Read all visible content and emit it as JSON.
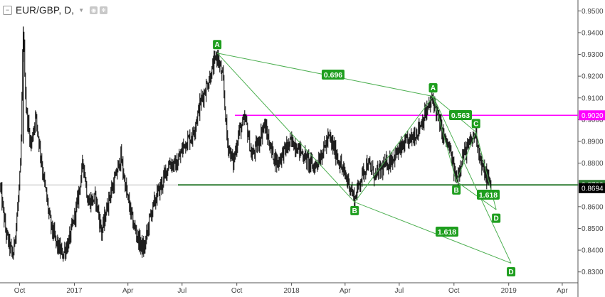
{
  "header": {
    "title": "EUR/GBP, D,",
    "collapse_icon": "minus-icon",
    "caret_icon": "caret-down-icon",
    "buttons": [
      "eye-icon",
      "gear-icon"
    ]
  },
  "colors": {
    "pattern": "#4caf50",
    "label_bg": "#1e9e1e",
    "resistance": "#ff00ff",
    "support": "#2e7d32",
    "candle": "#000000",
    "price_badge": "#000000",
    "gray_line": "#bdbdbd"
  },
  "price_axis": {
    "ticks": [
      "0.9500",
      "0.9400",
      "0.9300",
      "0.9200",
      "0.9100",
      "0.9000",
      "0.8900",
      "0.8800",
      "0.8700",
      "0.8600",
      "0.8500",
      "0.8400",
      "0.8300"
    ],
    "min": 0.825,
    "max": 0.955
  },
  "time_axis": {
    "ticks": [
      "Oct",
      "2017",
      "Apr",
      "Jul",
      "Oct",
      "2018",
      "Apr",
      "Jul",
      "Oct",
      "2019",
      "Apr"
    ]
  },
  "badges": {
    "resistance": "0.9020",
    "support": "0.8700",
    "last_price": "0.8694"
  },
  "chart_data": {
    "type": "candlestick",
    "symbol": "EUR/GBP",
    "interval": "D",
    "horizontal_lines": [
      {
        "price": 0.902,
        "style": "resistance"
      },
      {
        "price": 0.87,
        "style": "support"
      },
      {
        "price": 0.87,
        "style": "gray"
      }
    ],
    "patterns": [
      {
        "name": "pattern-1",
        "points": [
          {
            "label": "A",
            "date": "2017-08-29",
            "price": 0.9306
          },
          {
            "label": "B",
            "date": "2018-04-17",
            "price": 0.8621
          },
          {
            "label": "C",
            "date": "2018-08-27",
            "price": 0.9107
          },
          {
            "label": "D",
            "date": "2019-01-05",
            "price": 0.834
          }
        ],
        "ratios": [
          {
            "value": "0.696",
            "between": [
              "A",
              "C"
            ]
          },
          {
            "value": "1.618",
            "between": [
              "B",
              "D"
            ]
          }
        ]
      },
      {
        "name": "pattern-2",
        "points": [
          {
            "label": "A",
            "date": "2018-08-27",
            "price": 0.9107
          },
          {
            "label": "B",
            "date": "2018-10-05",
            "price": 0.8716
          },
          {
            "label": "C",
            "date": "2018-11-07",
            "price": 0.8943
          },
          {
            "label": "D",
            "date": "2018-12-11",
            "price": 0.8586
          }
        ],
        "ratios": [
          {
            "value": "0.563",
            "between": [
              "A",
              "C"
            ]
          },
          {
            "value": "1.618",
            "between": [
              "B",
              "D"
            ]
          }
        ]
      }
    ],
    "price_path": [
      [
        "2016-08-29",
        0.87
      ],
      [
        "2016-09-08",
        0.848
      ],
      [
        "2016-09-20",
        0.837
      ],
      [
        "2016-09-28",
        0.86
      ],
      [
        "2016-10-03",
        0.88
      ],
      [
        "2016-10-07",
        0.942
      ],
      [
        "2016-10-12",
        0.905
      ],
      [
        "2016-10-20",
        0.888
      ],
      [
        "2016-10-28",
        0.902
      ],
      [
        "2016-11-10",
        0.874
      ],
      [
        "2016-11-22",
        0.852
      ],
      [
        "2016-12-02",
        0.843
      ],
      [
        "2016-12-12",
        0.838
      ],
      [
        "2016-12-23",
        0.844
      ],
      [
        "2017-01-05",
        0.86
      ],
      [
        "2017-01-16",
        0.881
      ],
      [
        "2017-01-24",
        0.862
      ],
      [
        "2017-02-06",
        0.864
      ],
      [
        "2017-02-16",
        0.848
      ],
      [
        "2017-02-28",
        0.864
      ],
      [
        "2017-03-10",
        0.872
      ],
      [
        "2017-03-20",
        0.883
      ],
      [
        "2017-03-30",
        0.866
      ],
      [
        "2017-04-10",
        0.852
      ],
      [
        "2017-04-20",
        0.844
      ],
      [
        "2017-04-28",
        0.84
      ],
      [
        "2017-05-08",
        0.855
      ],
      [
        "2017-05-18",
        0.864
      ],
      [
        "2017-05-30",
        0.872
      ],
      [
        "2017-06-09",
        0.88
      ],
      [
        "2017-06-22",
        0.879
      ],
      [
        "2017-07-05",
        0.889
      ],
      [
        "2017-07-19",
        0.893
      ],
      [
        "2017-08-01",
        0.908
      ],
      [
        "2017-08-15",
        0.918
      ],
      [
        "2017-08-29",
        0.93
      ],
      [
        "2017-09-08",
        0.918
      ],
      [
        "2017-09-15",
        0.89
      ],
      [
        "2017-09-25",
        0.88
      ],
      [
        "2017-10-05",
        0.895
      ],
      [
        "2017-10-16",
        0.9
      ],
      [
        "2017-10-26",
        0.883
      ],
      [
        "2017-11-06",
        0.889
      ],
      [
        "2017-11-16",
        0.898
      ],
      [
        "2017-11-28",
        0.886
      ],
      [
        "2017-12-08",
        0.88
      ],
      [
        "2017-12-20",
        0.886
      ],
      [
        "2018-01-02",
        0.89
      ],
      [
        "2018-01-15",
        0.886
      ],
      [
        "2018-01-29",
        0.881
      ],
      [
        "2018-02-08",
        0.878
      ],
      [
        "2018-02-20",
        0.884
      ],
      [
        "2018-03-05",
        0.892
      ],
      [
        "2018-03-19",
        0.883
      ],
      [
        "2018-03-29",
        0.876
      ],
      [
        "2018-04-09",
        0.87
      ],
      [
        "2018-04-17",
        0.863
      ],
      [
        "2018-04-26",
        0.872
      ],
      [
        "2018-05-08",
        0.88
      ],
      [
        "2018-05-22",
        0.874
      ],
      [
        "2018-06-04",
        0.878
      ],
      [
        "2018-06-18",
        0.882
      ],
      [
        "2018-07-02",
        0.886
      ],
      [
        "2018-07-16",
        0.89
      ],
      [
        "2018-07-30",
        0.894
      ],
      [
        "2018-08-13",
        0.902
      ],
      [
        "2018-08-27",
        0.91
      ],
      [
        "2018-09-05",
        0.9
      ],
      [
        "2018-09-14",
        0.892
      ],
      [
        "2018-09-24",
        0.886
      ],
      [
        "2018-10-05",
        0.872
      ],
      [
        "2018-10-15",
        0.883
      ],
      [
        "2018-10-26",
        0.888
      ],
      [
        "2018-11-07",
        0.894
      ],
      [
        "2018-11-16",
        0.879
      ],
      [
        "2018-11-26",
        0.873
      ],
      [
        "2018-12-03",
        0.8694
      ]
    ]
  }
}
